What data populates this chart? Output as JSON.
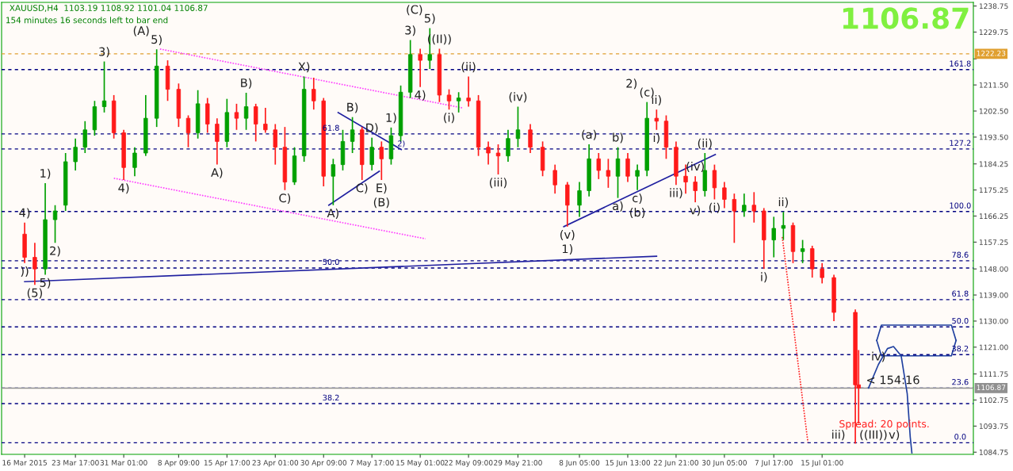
{
  "chart_data": {
    "type": "candlestick",
    "title": "XAUUSD,H4  1103.19 1108.92 1101.04 1106.87",
    "subtitle": "154 minutes 16 seconds left to bar end",
    "x": [
      "2015-03-16T00:00",
      "2015-03-17T13:00",
      "2015-03-19T03:00",
      "2015-03-20T15:00",
      "2015-03-22T05:00",
      "2015-03-23T17:00",
      "2015-03-25T04:00",
      "2015-03-26T15:00",
      "2015-03-28T02:00",
      "2015-03-29T13:00",
      "2015-03-31T01:00",
      "2015-04-01T17:00",
      "2015-04-03T09:00",
      "2015-04-05T01:00",
      "2015-04-06T17:00",
      "2015-04-08T09:00",
      "2015-04-09T20:00",
      "2015-04-11T07:00",
      "2015-04-12T18:00",
      "2015-04-14T05:00",
      "2015-04-15T17:00",
      "2015-04-17T04:00",
      "2015-04-18T15:00",
      "2015-04-20T02:00",
      "2015-04-21T13:00",
      "2015-04-23T01:00",
      "2015-04-24T12:00",
      "2015-04-25T23:00",
      "2015-04-27T10:00",
      "2015-04-28T21:00",
      "2015-04-30T09:00",
      "2015-05-01T20:00",
      "2015-05-03T07:00",
      "2015-05-04T18:00",
      "2015-05-06T05:00",
      "2015-05-07T17:00",
      "2015-05-09T04:00",
      "2015-05-10T15:00",
      "2015-05-12T02:00",
      "2015-05-13T13:00",
      "2015-05-15T01:00",
      "2015-05-16T12:00",
      "2015-05-17T23:00",
      "2015-05-19T10:00",
      "2015-05-20T21:00",
      "2015-05-22T09:00",
      "2015-05-23T21:00",
      "2015-05-25T09:00",
      "2015-05-26T21:00",
      "2015-05-28T09:00",
      "2015-05-29T21:00",
      "2015-05-31T18:00",
      "2015-06-02T15:00",
      "2015-06-04T12:00",
      "2015-06-06T09:00",
      "2015-06-08T05:00",
      "2015-06-09T16:00",
      "2015-06-11T03:00",
      "2015-06-12T14:00",
      "2015-06-14T01:00",
      "2015-06-15T13:00",
      "2015-06-17T00:00",
      "2015-06-18T11:00",
      "2015-06-19T22:00",
      "2015-06-21T09:00",
      "2015-06-22T21:00",
      "2015-06-24T08:00",
      "2015-06-25T19:00",
      "2015-06-27T06:00",
      "2015-06-28T17:00",
      "2015-06-30T05:00",
      "2015-07-01T17:00",
      "2015-07-03T05:00",
      "2015-07-04T17:00",
      "2015-07-06T05:00",
      "2015-07-07T17:00",
      "2015-07-09T04:00",
      "2015-07-10T15:00",
      "2015-07-12T02:00",
      "2015-07-13T13:00",
      "2015-07-15T01:00",
      "2015-07-16T20:00",
      "2015-07-20T02:00",
      "2015-07-20T14:00"
    ],
    "ohlc": [
      [
        1160,
        1164,
        1150,
        1152
      ],
      [
        1152,
        1157,
        1142.5,
        1148
      ],
      [
        1148,
        1177.6,
        1146,
        1165
      ],
      [
        1165,
        1170,
        1157,
        1168
      ],
      [
        1170,
        1188,
        1168,
        1185
      ],
      [
        1185,
        1193,
        1182,
        1190
      ],
      [
        1190,
        1199,
        1188,
        1196
      ],
      [
        1196,
        1206,
        1194,
        1204
      ],
      [
        1204,
        1219.6,
        1202,
        1206
      ],
      [
        1206,
        1208,
        1193,
        1195
      ],
      [
        1195,
        1196,
        1178.7,
        1183
      ],
      [
        1183,
        1190,
        1180,
        1188
      ],
      [
        1188,
        1208,
        1187,
        1200
      ],
      [
        1200,
        1223.8,
        1197,
        1218
      ],
      [
        1218,
        1220,
        1206,
        1210
      ],
      [
        1210,
        1212,
        1197,
        1200
      ],
      [
        1200,
        1201,
        1190,
        1195
      ],
      [
        1195,
        1209.7,
        1193,
        1205
      ],
      [
        1205,
        1207,
        1195,
        1198
      ],
      [
        1198,
        1200,
        1184,
        1192
      ],
      [
        1192,
        1206.7,
        1190,
        1202
      ],
      [
        1202,
        1205,
        1196,
        1200
      ],
      [
        1200,
        1208.8,
        1196,
        1204
      ],
      [
        1204,
        1205,
        1192,
        1198
      ],
      [
        1198,
        1203.6,
        1195,
        1196
      ],
      [
        1196,
        1198,
        1184,
        1190
      ],
      [
        1190,
        1197,
        1175.2,
        1178
      ],
      [
        1178,
        1190,
        1177,
        1187
      ],
      [
        1187,
        1214.4,
        1185,
        1210
      ],
      [
        1210,
        1214,
        1203,
        1206
      ],
      [
        1206,
        1207,
        1176.5,
        1180
      ],
      [
        1180,
        1186,
        1170,
        1184
      ],
      [
        1184,
        1196,
        1182,
        1192
      ],
      [
        1192,
        1200.4,
        1188,
        1196
      ],
      [
        1196,
        1197,
        1178.7,
        1184
      ],
      [
        1184,
        1193.3,
        1182,
        1190
      ],
      [
        1190,
        1192,
        1178.7,
        1186
      ],
      [
        1186,
        1196.8,
        1184,
        1194
      ],
      [
        1194,
        1211.3,
        1192,
        1209
      ],
      [
        1209,
        1227,
        1207,
        1222
      ],
      [
        1222,
        1224,
        1210.8,
        1220
      ],
      [
        1220,
        1231.1,
        1217,
        1222
      ],
      [
        1222,
        1224,
        1205.6,
        1208
      ],
      [
        1208,
        1210,
        1203,
        1206
      ],
      [
        1206,
        1209,
        1202,
        1207
      ],
      [
        1207,
        1214.4,
        1204,
        1206
      ],
      [
        1206,
        1208,
        1187,
        1190
      ],
      [
        1190,
        1192,
        1184,
        1188
      ],
      [
        1188,
        1191,
        1180.6,
        1187
      ],
      [
        1187,
        1196,
        1185,
        1193
      ],
      [
        1193,
        1204,
        1190,
        1196
      ],
      [
        1196,
        1198,
        1188,
        1190
      ],
      [
        1190,
        1192,
        1180,
        1182
      ],
      [
        1182,
        1184,
        1174,
        1177
      ],
      [
        1177,
        1178,
        1162.6,
        1170
      ],
      [
        1170,
        1178,
        1166,
        1175
      ],
      [
        1175,
        1191,
        1173,
        1186
      ],
      [
        1186,
        1188,
        1179,
        1182
      ],
      [
        1182,
        1186,
        1176,
        1180
      ],
      [
        1180,
        1190,
        1172.5,
        1186
      ],
      [
        1186,
        1188,
        1178,
        1180
      ],
      [
        1180,
        1184,
        1175.2,
        1182
      ],
      [
        1182,
        1205.6,
        1180,
        1200
      ],
      [
        1200,
        1203,
        1196,
        1199
      ],
      [
        1199,
        1201,
        1186,
        1190
      ],
      [
        1190,
        1192,
        1177,
        1180
      ],
      [
        1180,
        1184,
        1174,
        1178
      ],
      [
        1178,
        1180,
        1171,
        1175
      ],
      [
        1175,
        1188,
        1173,
        1182
      ],
      [
        1182,
        1184,
        1172,
        1176
      ],
      [
        1176,
        1178,
        1169,
        1172
      ],
      [
        1172,
        1174,
        1157,
        1168
      ],
      [
        1168,
        1174,
        1166,
        1170
      ],
      [
        1170,
        1174.5,
        1164,
        1168
      ],
      [
        1168,
        1169,
        1148,
        1158
      ],
      [
        1158,
        1166,
        1152,
        1162
      ],
      [
        1162,
        1167.7,
        1158,
        1163
      ],
      [
        1163,
        1164,
        1150,
        1154
      ],
      [
        1154,
        1158,
        1150,
        1155
      ],
      [
        1155,
        1156,
        1145,
        1148
      ],
      [
        1148,
        1150,
        1143,
        1145
      ],
      [
        1145,
        1146,
        1130,
        1133
      ],
      [
        1133,
        1134,
        1087.7,
        1108
      ],
      [
        1108,
        1120,
        1094.6,
        1106.87
      ]
    ],
    "series": [
      {
        "type": "line",
        "color": "#2020a0",
        "line_style": "solid",
        "x": [
          "2015-03-16T00:00",
          "2015-06-19T22:00"
        ],
        "values": [
          1143.6,
          1152.4
        ]
      },
      {
        "type": "line",
        "color": "#ff40ff",
        "line_style": "dotted",
        "x": [
          "2015-04-05T13:00",
          "2015-05-21T10:00"
        ],
        "values": [
          1223.9,
          1203.6
        ]
      },
      {
        "type": "line",
        "color": "#ff40ff",
        "line_style": "dotted",
        "x": [
          "2015-03-29T13:00",
          "2015-05-15T20:00"
        ],
        "values": [
          1179.3,
          1158.4
        ]
      },
      {
        "type": "line",
        "color": "#2020a0",
        "line_style": "solid",
        "x": [
          "2015-05-02T14:00",
          "2015-05-12T04:00"
        ],
        "values": [
          1202,
          1189.2
        ]
      },
      {
        "type": "line",
        "color": "#2020a0",
        "line_style": "solid",
        "x": [
          "2015-05-01T04:00",
          "2015-05-08T20:00"
        ],
        "values": [
          1170,
          1181.7
        ]
      },
      {
        "type": "line",
        "color": "#2020a0",
        "line_style": "solid",
        "x": [
          "2015-06-05T20:00",
          "2015-06-28T20:00"
        ],
        "values": [
          1162.6,
          1187.5
        ]
      },
      {
        "type": "line",
        "color": "#ff2020",
        "line_style": "dotted",
        "x": [
          "2015-07-09T00:00",
          "2015-07-12T21:00"
        ],
        "values": [
          1159,
          1088.3
        ]
      },
      {
        "type": "line",
        "color": "#2040a0",
        "line_style": "solid",
        "x": [
          "2015-07-22T02:00",
          "2015-07-23T14:00",
          "2015-07-24T23:00",
          "2015-07-25T21:00",
          "2015-07-27T01:00",
          "2015-07-27T23:00",
          "2015-07-28T10:00",
          "2015-07-28T16:00"
        ],
        "values": [
          1106.9,
          1115,
          1120.5,
          1121.2,
          1118,
          1105,
          1090,
          1084.5
        ]
      },
      {
        "type": "line",
        "color": "#2040a0",
        "line_style": "solid",
        "x": [
          "2015-07-23T08:00",
          "2015-07-24T01:00",
          "2015-08-03T16:00",
          "2015-08-04T09:00"
        ],
        "values": [
          1123.3,
          1128.6,
          1128.6,
          1123.3
        ]
      },
      {
        "type": "line",
        "color": "#2040a0",
        "line_style": "solid",
        "x": [
          "2015-07-23T08:00",
          "2015-07-24T01:00",
          "2015-08-03T16:00",
          "2015-08-04T09:00"
        ],
        "values": [
          1123.3,
          1118,
          1118,
          1123.3
        ]
      }
    ],
    "ref_lines": [
      {
        "axis": "y",
        "value": 1194.6
      },
      {
        "axis": "y",
        "value": 1148.3
      },
      {
        "axis": "y",
        "value": 1101.5
      },
      {
        "axis": "y",
        "value": 1216.8
      },
      {
        "axis": "y",
        "value": 1189.4
      },
      {
        "axis": "y",
        "value": 1167.8
      },
      {
        "axis": "y",
        "value": 1150.8
      },
      {
        "axis": "y",
        "value": 1137.4
      },
      {
        "axis": "y",
        "value": 1128
      },
      {
        "axis": "y",
        "value": 1118.4
      },
      {
        "axis": "y",
        "value": 1106.9
      },
      {
        "axis": "y",
        "value": 1088
      },
      {
        "axis": "y",
        "value": 1222.23,
        "label": "1222.23",
        "color": "#e0a030",
        "line_style": "dashed"
      },
      {
        "axis": "y",
        "value": 1106.87,
        "label": "1106.87",
        "color": "#909090",
        "line_style": "solid"
      }
    ],
    "annotations": [
      "1106.87",
      "Spread: 20 points.",
      {
        "text": "61.8",
        "x": "2015-05-01T12:00",
        "y": 1194.6
      },
      {
        "text": "50.0",
        "x": "2015-05-01T12:00",
        "y": 1148.3
      },
      {
        "text": "38.2",
        "x": "2015-05-01T12:00",
        "y": 1101.5
      },
      {
        "text": "161.8",
        "x": "2015-08-05T00:00",
        "y": 1216.8
      },
      {
        "text": "127.2",
        "x": "2015-08-05T00:00",
        "y": 1189.4
      },
      {
        "text": "100.0",
        "x": "2015-08-05T00:00",
        "y": 1167.8
      },
      {
        "text": "78.6",
        "x": "2015-08-05T00:00",
        "y": 1150.8
      },
      {
        "text": "61.8",
        "x": "2015-08-05T00:00",
        "y": 1137.4
      },
      {
        "text": "50.0",
        "x": "2015-08-05T00:00",
        "y": 1128
      },
      {
        "text": "38.2",
        "x": "2015-08-05T00:00",
        "y": 1118.4
      },
      {
        "text": "23.6",
        "x": "2015-08-05T00:00",
        "y": 1106.9
      },
      {
        "text": "0.0",
        "x": "2015-08-05T00:00",
        "y": 1088
      },
      {
        "text": "4)",
        "x": "2015-03-16T00:00",
        "y": 1164
      },
      {
        "text": "1)",
        "x": "2015-03-19T03:00",
        "y": 1177.6
      },
      {
        "text": "2)",
        "x": "2015-03-20T15:00",
        "y": 1157
      },
      {
        "text": "))",
        "x": "2015-03-16T00:00",
        "y": 1150
      },
      {
        "text": "(5)",
        "x": "2015-03-17T13:00",
        "y": 1142.5
      },
      {
        "text": "5)",
        "x": "2015-03-19T03:00",
        "y": 1146
      },
      {
        "text": "3)",
        "x": "2015-03-28T02:00",
        "y": 1219.6
      },
      {
        "text": "4)",
        "x": "2015-03-31T01:00",
        "y": 1178.7
      },
      {
        "text": "5)",
        "x": "2015-04-05T01:00",
        "y": 1223.8
      },
      {
        "text": "(A)",
        "x": "2015-04-05T01:00",
        "y": 1223.8
      },
      {
        "text": "A)",
        "x": "2015-04-14T05:00",
        "y": 1184
      },
      {
        "text": "B)",
        "x": "2015-04-18T15:00",
        "y": 1208.8
      },
      {
        "text": "C)",
        "x": "2015-04-24T12:00",
        "y": 1175.2
      },
      {
        "text": "X)",
        "x": "2015-04-27T10:00",
        "y": 1214.4
      },
      {
        "text": "A)",
        "x": "2015-05-01T20:00",
        "y": 1170
      },
      {
        "text": "B)",
        "x": "2015-05-04T18:00",
        "y": 1200.4
      },
      {
        "text": "D)",
        "x": "2015-05-07T17:00",
        "y": 1193.3
      },
      {
        "text": "C)",
        "x": "2015-05-06T05:00",
        "y": 1178.7
      },
      {
        "text": "1)",
        "x": "2015-05-10T15:00",
        "y": 1196.8
      },
      {
        "text": "2)",
        "x": "2015-05-12T04:00",
        "y": 1189.2
      },
      {
        "text": "E)",
        "x": "2015-05-09T04:00",
        "y": 1178.7
      },
      {
        "text": "(B)",
        "x": "2015-05-09T04:00",
        "y": 1178.7
      },
      {
        "text": "3)",
        "x": "2015-05-13T13:00",
        "y": 1227
      },
      {
        "text": "5)",
        "x": "2015-05-16T12:00",
        "y": 1231.1
      },
      {
        "text": "(C)",
        "x": "2015-05-16T12:00",
        "y": 1231.1
      },
      {
        "text": "((II))",
        "x": "2015-05-17T23:00",
        "y": 1224
      },
      {
        "text": "4)",
        "x": "2015-05-15T01:00",
        "y": 1210.8
      },
      {
        "text": "(i)",
        "x": "2015-05-19T10:00",
        "y": 1203
      },
      {
        "text": "(ii)",
        "x": "2015-05-22T09:00",
        "y": 1214.4
      },
      {
        "text": "(iii)",
        "x": "2015-05-26T21:00",
        "y": 1180.6
      },
      {
        "text": "(iv)",
        "x": "2015-05-29T21:00",
        "y": 1204
      },
      {
        "text": "(v)",
        "x": "2015-06-06T09:00",
        "y": 1162.6
      },
      {
        "text": "1)",
        "x": "2015-06-06T09:00",
        "y": 1162.6
      },
      {
        "text": "(a)",
        "x": "2015-06-09T16:00",
        "y": 1191
      },
      {
        "text": "b)",
        "x": "2015-06-14T01:00",
        "y": 1190
      },
      {
        "text": "a)",
        "x": "2015-06-14T01:00",
        "y": 1172.5
      },
      {
        "text": "c)",
        "x": "2015-06-17T00:00",
        "y": 1175.2
      },
      {
        "text": "(b)",
        "x": "2015-06-17T00:00",
        "y": 1175.2
      },
      {
        "text": "(c)",
        "x": "2015-06-18T11:00",
        "y": 1205.6
      },
      {
        "text": "2)",
        "x": "2015-06-18T11:00",
        "y": 1205.6
      },
      {
        "text": "ii)",
        "x": "2015-06-19T22:00",
        "y": 1203
      },
      {
        "text": "i)",
        "x": "2015-06-19T22:00",
        "y": 1196
      },
      {
        "text": "iii)",
        "x": "2015-06-22T21:00",
        "y": 1177
      },
      {
        "text": "(iv)",
        "x": "2015-06-25T19:00",
        "y": 1180
      },
      {
        "text": "(ii)",
        "x": "2015-06-27T06:00",
        "y": 1188
      },
      {
        "text": "v)",
        "x": "2015-06-25T19:00",
        "y": 1171
      },
      {
        "text": "(i)",
        "x": "2015-06-28T17:00",
        "y": 1172
      },
      {
        "text": "i)",
        "x": "2015-07-06T05:00",
        "y": 1148
      },
      {
        "text": "ii)",
        "x": "2015-07-09T04:00",
        "y": 1167.7
      },
      {
        "text": "iii)",
        "x": "2015-07-17T12:00",
        "y": 1088
      },
      {
        "text": "iv)",
        "x": "2015-07-23T14:00",
        "y": 1115
      },
      {
        "text": "((III))",
        "x": "2015-07-22T20:00",
        "y": 1088
      },
      {
        "text": "v)",
        "x": "2015-07-26T00:00",
        "y": 1088
      },
      {
        "text": "< 154:16",
        "x": "2015-07-25T19:00",
        "y": 1106.87
      }
    ],
    "xlim": [
      "2015-03-12T12:00",
      "2015-08-07T00:00"
    ],
    "xticks": [
      {
        "value": "2015-03-16T00:00",
        "label": "16 Mar 2015"
      },
      {
        "value": "2015-03-23T17:00",
        "label": "23 Mar 17:00"
      },
      {
        "value": "2015-03-31T01:00",
        "label": "31 Mar 01:00"
      },
      {
        "value": "2015-04-08T09:00",
        "label": "8 Apr 09:00"
      },
      {
        "value": "2015-04-15T17:00",
        "label": "15 Apr 17:00"
      },
      {
        "value": "2015-04-23T01:00",
        "label": "23 Apr 01:00"
      },
      {
        "value": "2015-04-30T09:00",
        "label": "30 Apr 09:00"
      },
      {
        "value": "2015-05-07T17:00",
        "label": "7 May 17:00"
      },
      {
        "value": "2015-05-15T01:00",
        "label": "15 May 01:00"
      },
      {
        "value": "2015-05-22T09:00",
        "label": "22 May 09:00"
      },
      {
        "value": "2015-05-29T21:00",
        "label": "29 May 21:00"
      },
      {
        "value": "2015-06-08T05:00",
        "label": "8 Jun 05:00"
      },
      {
        "value": "2015-06-15T13:00",
        "label": "15 Jun 13:00"
      },
      {
        "value": "2015-06-22T21:00",
        "label": "22 Jun 21:00"
      },
      {
        "value": "2015-06-30T05:00",
        "label": "30 Jun 05:00"
      },
      {
        "value": "2015-07-07T17:00",
        "label": "7 Jul 17:00"
      },
      {
        "value": "2015-07-15T01:00",
        "label": "15 Jul 01:00"
      }
    ],
    "ylim": [
      1084,
      1240
    ],
    "yticks": [
      1084.75,
      1093.75,
      1102.75,
      1111.75,
      {
        "value": 1121,
        "label": "1121.00"
      },
      {
        "value": 1130,
        "label": "1130.00"
      },
      {
        "value": 1139,
        "label": "1139.00"
      },
      {
        "value": 1148,
        "label": "1148.00"
      },
      1157.25,
      1166.25,
      1175.25,
      1184.25,
      {
        "value": 1193.5,
        "label": "1193.50"
      },
      {
        "value": 1202.5,
        "label": "1202.50"
      },
      {
        "value": 1211.5,
        "label": "1211.50"
      },
      {
        "value": 1220.5,
        "label": null
      },
      1229.75,
      1238.75
    ]
  }
}
